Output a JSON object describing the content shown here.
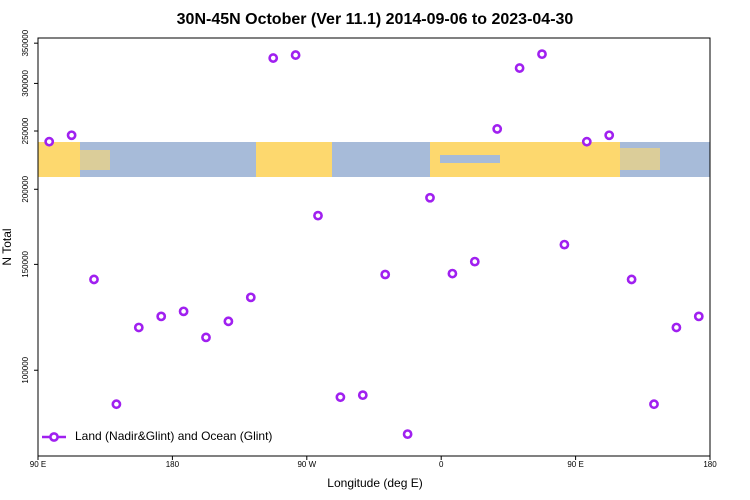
{
  "chart_data": {
    "type": "scatter",
    "title": "30N-45N October (Ver 11.1)   2014-09-06 to 2023-04-30",
    "x_label": "Longitude (deg E)",
    "y_label": "N Total",
    "log_y": true,
    "xlim": [
      90,
      540
    ],
    "ylim": [
      72000,
      357000
    ],
    "xticks": [
      {
        "value": 90,
        "label": "90 E"
      },
      180,
      {
        "value": 270,
        "label": "90 W"
      },
      {
        "value": 360,
        "label": "0"
      },
      {
        "value": 450,
        "label": "90 E"
      },
      {
        "value": 540,
        "label": "180"
      }
    ],
    "yticks": [
      100000,
      150000,
      200000,
      250000,
      300000,
      350000
    ],
    "legend_position": "bottom-left",
    "series": [
      {
        "name": "Land (Nadir&Glint) and Ocean (Glint)",
        "color": "#a020f0",
        "x": [
          97.5,
          112.5,
          127.5,
          142.5,
          157.5,
          172.5,
          187.5,
          202.5,
          217.5,
          232.5,
          247.5,
          262.5,
          277.5,
          292.5,
          307.5,
          322.5,
          337.5,
          352.5,
          367.5,
          382.5,
          397.5,
          412.5,
          427.5,
          442.5,
          457.5,
          472.5,
          487.5,
          502.5,
          517.5,
          532.5
        ],
        "values": [
          240000,
          246000,
          141600,
          87800,
          117800,
          122900,
          125300,
          113400,
          120600,
          132200,
          330600,
          334400,
          180800,
          90200,
          90900,
          144300,
          78300,
          193600,
          144800,
          151600,
          252000,
          318200,
          335600,
          161800,
          240000,
          246000,
          141600,
          87800,
          117800,
          122900
        ]
      }
    ]
  }
}
